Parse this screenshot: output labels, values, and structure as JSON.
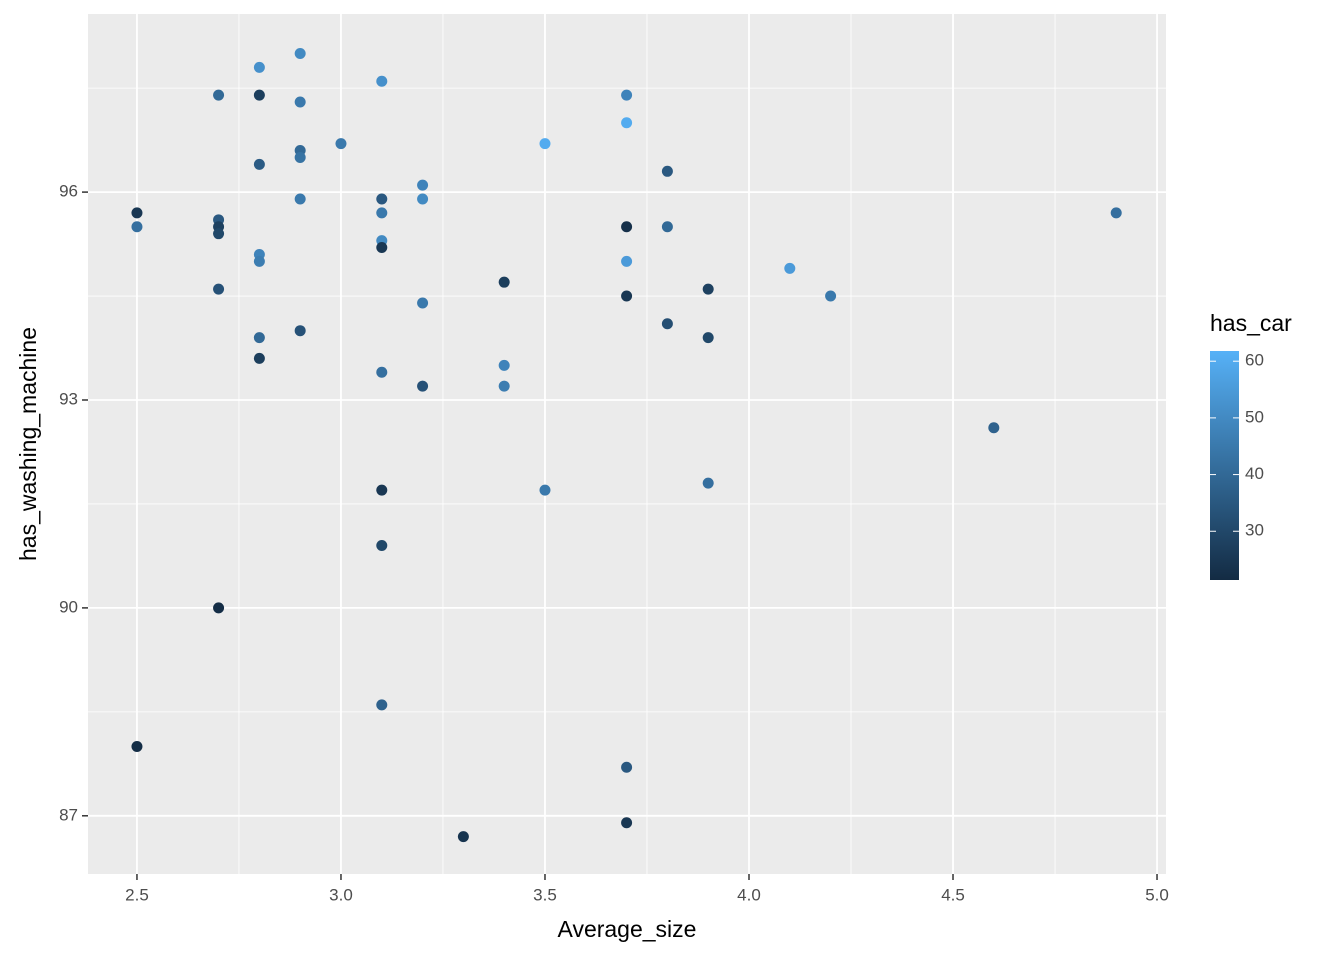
{
  "chart_data": {
    "type": "scatter",
    "x_label": "Average_size",
    "y_label": "has_washing_machine",
    "x": [
      2.5,
      2.5,
      2.5,
      2.7,
      2.7,
      2.7,
      2.7,
      2.7,
      2.7,
      2.8,
      2.8,
      2.8,
      2.8,
      2.8,
      2.8,
      2.8,
      2.9,
      2.9,
      2.9,
      2.9,
      2.9,
      2.9,
      3.0,
      3.1,
      3.1,
      3.1,
      3.1,
      3.1,
      3.1,
      3.1,
      3.1,
      3.1,
      3.2,
      3.2,
      3.2,
      3.2,
      3.3,
      3.4,
      3.4,
      3.4,
      3.5,
      3.5,
      3.7,
      3.7,
      3.7,
      3.7,
      3.7,
      3.7,
      3.7,
      3.8,
      3.8,
      3.8,
      3.9,
      3.9,
      3.9,
      4.1,
      4.2,
      4.6,
      4.9
    ],
    "y": [
      95.7,
      95.5,
      88.0,
      97.4,
      95.6,
      95.5,
      95.4,
      94.6,
      90.0,
      97.8,
      97.4,
      96.4,
      95.1,
      95.0,
      93.9,
      93.6,
      98.0,
      97.3,
      96.6,
      96.5,
      95.9,
      94.0,
      96.7,
      97.6,
      95.9,
      95.7,
      95.3,
      95.2,
      93.4,
      91.7,
      90.9,
      88.6,
      96.1,
      95.9,
      94.4,
      93.2,
      86.7,
      94.7,
      93.5,
      93.2,
      96.7,
      91.7,
      97.4,
      97.0,
      95.5,
      95.0,
      94.5,
      87.7,
      86.9,
      96.3,
      95.5,
      94.1,
      94.6,
      93.9,
      91.8,
      94.9,
      94.5,
      92.6,
      95.7
    ],
    "color_values": [
      25,
      42,
      22,
      40,
      35,
      28,
      30,
      33,
      22,
      52,
      27,
      36,
      48,
      46,
      40,
      27,
      50,
      45,
      40,
      43,
      45,
      33,
      45,
      52,
      35,
      45,
      50,
      25,
      42,
      25,
      30,
      38,
      48,
      50,
      45,
      33,
      24,
      27,
      48,
      46,
      60,
      45,
      48,
      60,
      23,
      55,
      25,
      35,
      25,
      35,
      40,
      32,
      28,
      30,
      42,
      55,
      45,
      38,
      42
    ],
    "color_title": "has_car",
    "color_low": "#132B43",
    "color_high": "#56B1F7",
    "color_lim": [
      21.4,
      61.8
    ],
    "color_ticks": [
      30,
      40,
      50,
      60
    ],
    "xlim": [
      2.38,
      5.022
    ],
    "ylim": [
      86.16,
      98.57
    ],
    "xticks": [
      2.5,
      {
        "value": 3,
        "label": "3.0"
      },
      3.5,
      {
        "value": 4,
        "label": "4.0"
      },
      4.5,
      {
        "value": 5,
        "label": "5.0"
      }
    ],
    "yticks": [
      87,
      90,
      93,
      96
    ],
    "grid": true
  }
}
